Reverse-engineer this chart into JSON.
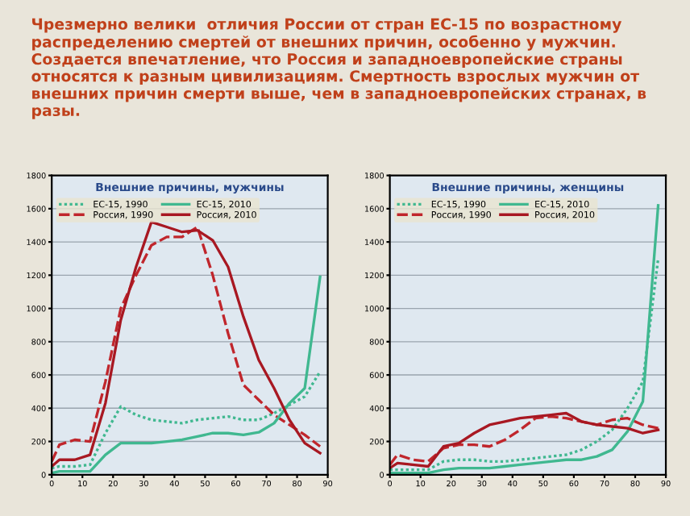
{
  "chart_data": [
    {
      "type": "line",
      "title": "Внешние причины, мужчины",
      "annotations": [
        "Чрезмерно велики  отличия России от стран ЕС-15 по возрастному распределению смертей от внешних причин, особенно у мужчин. Создается впечатление, что Россия и западноевропейские страны относятся к разным цивилизациям. Смертность взрослых мужчин от внешних причин смерти выше, чем в западноевропейских странах, в разы."
      ],
      "x": [
        0,
        2.5,
        7.5,
        12.5,
        17.5,
        22.5,
        27.5,
        32.5,
        37.5,
        42.5,
        47.5,
        52.5,
        57.5,
        62.5,
        67.5,
        72.5,
        77.5,
        82.5,
        87.5
      ],
      "xlim": [
        0,
        90
      ],
      "xticks": [
        0,
        10,
        20,
        30,
        40,
        50,
        60,
        70,
        80,
        90
      ],
      "ylim": [
        0,
        1800
      ],
      "yticks": [
        0,
        200,
        400,
        600,
        800,
        1000,
        1200,
        1400,
        1600,
        1800
      ],
      "grid": "y",
      "legend": "top left",
      "series": [
        {
          "name": "ЕС-15, 1990",
          "color": "#40b890",
          "line_style": "dotted",
          "values": [
            40,
            50,
            50,
            60,
            250,
            410,
            360,
            330,
            320,
            310,
            330,
            340,
            350,
            330,
            330,
            370,
            420,
            470,
            620
          ]
        },
        {
          "name": "Россия, 1990",
          "color": "#c0262c",
          "line_style": "dashed",
          "values": [
            80,
            180,
            210,
            200,
            560,
            1000,
            1200,
            1380,
            1430,
            1430,
            1490,
            1200,
            850,
            540,
            450,
            360,
            300,
            240,
            170
          ]
        },
        {
          "name": "ЕС-15, 2010",
          "color": "#40b890",
          "line_style": "solid",
          "values": [
            10,
            20,
            20,
            20,
            120,
            190,
            190,
            190,
            200,
            210,
            230,
            250,
            250,
            240,
            255,
            310,
            430,
            520,
            1190
          ]
        },
        {
          "name": "Россия, 2010",
          "color": "#a81822",
          "line_style": "solid",
          "values": [
            50,
            90,
            90,
            120,
            430,
            930,
            1250,
            1520,
            1490,
            1460,
            1470,
            1410,
            1250,
            950,
            690,
            520,
            330,
            190,
            130
          ]
        }
      ]
    },
    {
      "type": "line",
      "title": "Внешние причины, женщины",
      "x": [
        0,
        2.5,
        7.5,
        12.5,
        17.5,
        22.5,
        27.5,
        32.5,
        37.5,
        42.5,
        47.5,
        52.5,
        57.5,
        62.5,
        67.5,
        72.5,
        77.5,
        82.5,
        87.5
      ],
      "xlim": [
        0,
        90
      ],
      "xticks": [
        0,
        10,
        20,
        30,
        40,
        50,
        60,
        70,
        80,
        90
      ],
      "ylim": [
        0,
        1800
      ],
      "yticks": [
        0,
        200,
        400,
        600,
        800,
        1000,
        1200,
        1400,
        1600,
        1800
      ],
      "grid": "y",
      "legend": "top left",
      "series": [
        {
          "name": "ЕС-15, 1990",
          "color": "#40b890",
          "line_style": "dotted",
          "values": [
            30,
            30,
            30,
            30,
            80,
            90,
            90,
            80,
            80,
            90,
            100,
            110,
            120,
            150,
            200,
            270,
            400,
            560,
            1300
          ]
        },
        {
          "name": "Россия, 1990",
          "color": "#c0262c",
          "line_style": "dashed",
          "values": [
            60,
            120,
            90,
            80,
            160,
            180,
            180,
            170,
            210,
            270,
            340,
            350,
            340,
            320,
            300,
            330,
            340,
            300,
            280
          ]
        },
        {
          "name": "ЕС-15, 2010",
          "color": "#40b890",
          "line_style": "solid",
          "values": [
            10,
            10,
            10,
            10,
            30,
            40,
            40,
            40,
            50,
            60,
            70,
            80,
            90,
            90,
            110,
            150,
            260,
            440,
            1620
          ]
        },
        {
          "name": "Россия, 2010",
          "color": "#a81822",
          "line_style": "solid",
          "values": [
            40,
            70,
            60,
            50,
            170,
            190,
            250,
            300,
            320,
            340,
            350,
            360,
            370,
            320,
            300,
            290,
            280,
            250,
            270
          ]
        }
      ]
    }
  ]
}
